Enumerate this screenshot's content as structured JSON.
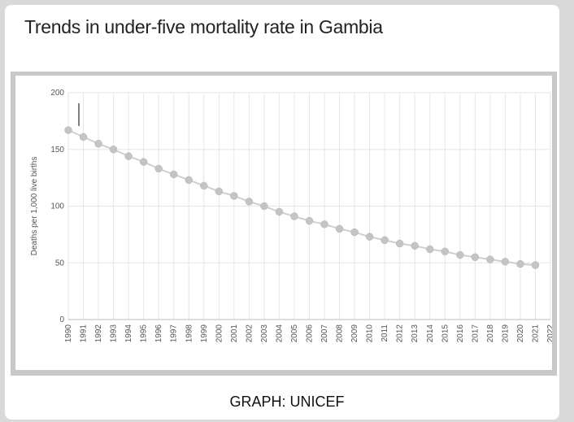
{
  "page": {
    "title": "Trends in under-five mortality rate in Gambia",
    "source": "GRAPH: UNICEF"
  },
  "chart_data": {
    "type": "line",
    "title": "Trends in under-five mortality rate in Gambia",
    "xlabel": "",
    "ylabel": "Deaths per 1,000 live births",
    "ylim": [
      0,
      200
    ],
    "yticks": [
      0,
      50,
      100,
      150,
      200
    ],
    "grid": true,
    "x": [
      1990,
      1991,
      1992,
      1993,
      1994,
      1995,
      1996,
      1997,
      1998,
      1999,
      2000,
      2001,
      2002,
      2003,
      2004,
      2005,
      2006,
      2007,
      2008,
      2009,
      2010,
      2011,
      2012,
      2013,
      2014,
      2015,
      2016,
      2017,
      2018,
      2019,
      2020,
      2021
    ],
    "x_tick_labels": [
      "1990",
      "1991",
      "1992",
      "1993",
      "1994",
      "1995",
      "1996",
      "1997",
      "1998",
      "1999",
      "2000",
      "2001",
      "2002",
      "2003",
      "2004",
      "2005",
      "2006",
      "2007",
      "2008",
      "2009",
      "2010",
      "2011",
      "2012",
      "2013",
      "2014",
      "2015",
      "2016",
      "2017",
      "2018",
      "2019",
      "2020",
      "2021",
      "2022"
    ],
    "series": [
      {
        "color": "#c9c9c9",
        "values": [
          167,
          161,
          155,
          150,
          144,
          139,
          133,
          128,
          123,
          118,
          113,
          109,
          104,
          100,
          95,
          91,
          87,
          84,
          80,
          77,
          73,
          70,
          67,
          65,
          62,
          60,
          57,
          55,
          53,
          51,
          49,
          48
        ]
      }
    ],
    "colors": {
      "line": "#cfcfcf",
      "marker": "#c4c4c4",
      "grid": "#e6e6e6",
      "axis_text": "#555555"
    }
  }
}
